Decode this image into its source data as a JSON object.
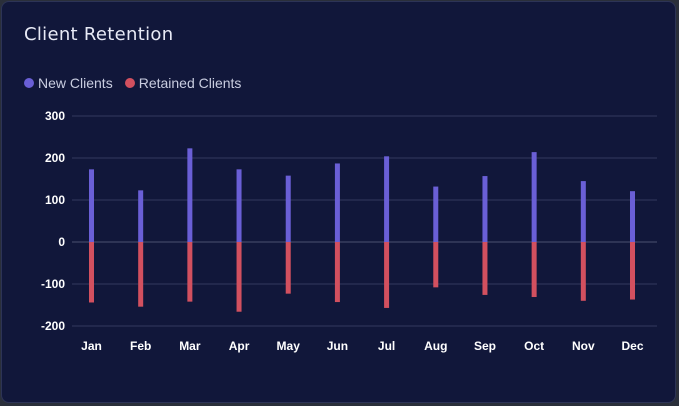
{
  "card": {
    "title": "Client Retention"
  },
  "colors": {
    "new": "#6a5fd6",
    "retained": "#d2505f",
    "grid": "#333a5e",
    "zero": "#4a5070"
  },
  "chart_data": {
    "type": "bar",
    "title": "Client Retention",
    "categories": [
      "Jan",
      "Feb",
      "Mar",
      "Apr",
      "May",
      "Jun",
      "Jul",
      "Aug",
      "Sep",
      "Oct",
      "Nov",
      "Dec"
    ],
    "series": [
      {
        "name": "New Clients",
        "values": [
          173,
          123,
          223,
          173,
          158,
          187,
          204,
          132,
          157,
          214,
          145,
          121
        ]
      },
      {
        "name": "Retained Clients",
        "values": [
          -144,
          -154,
          -142,
          -166,
          -123,
          -143,
          -157,
          -108,
          -126,
          -131,
          -140,
          -137
        ]
      }
    ],
    "ylim": [
      -200,
      300
    ],
    "yticks": [
      300,
      200,
      100,
      0,
      -100,
      -200
    ],
    "legend_position": "top-left",
    "grid": true
  }
}
